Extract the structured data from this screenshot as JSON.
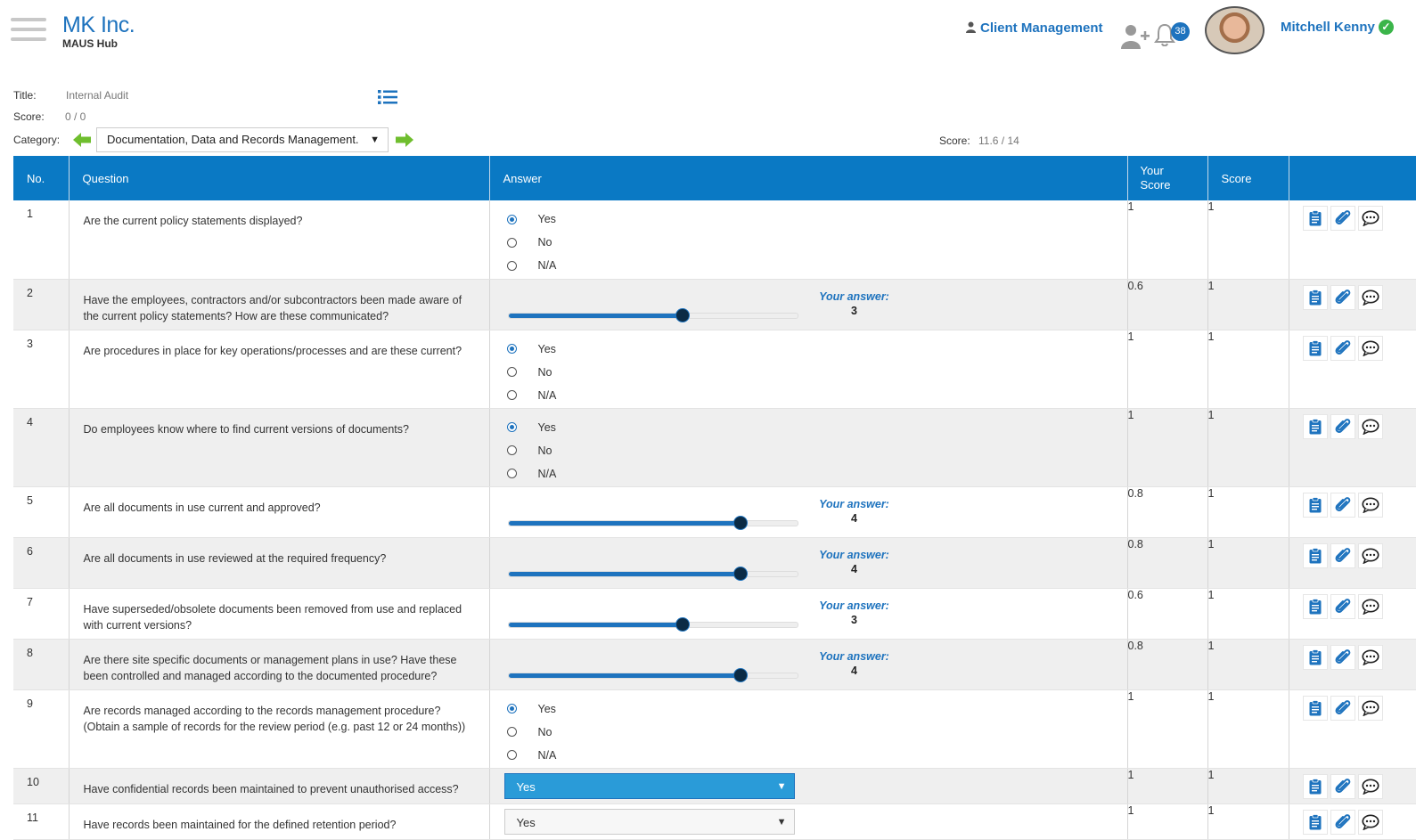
{
  "header": {
    "brand_name": "MK Inc.",
    "brand_sub": "MAUS Hub",
    "client_management": "Client Management",
    "notification_count": "38",
    "user_name": "Mitchell Kenny"
  },
  "audit": {
    "title_label": "Title:",
    "title_value": "Internal Audit",
    "score_label": "Score:",
    "score_value": "0 / 0",
    "category_label": "Category:",
    "category_value": "Documentation, Data and Records Management.",
    "category_score_label": "Score:",
    "category_score_value": "11.6 / 14"
  },
  "table": {
    "headers": {
      "no": "No.",
      "question": "Question",
      "answer": "Answer",
      "your_score": "Your Score",
      "score": "Score"
    },
    "radio_options": [
      "Yes",
      "No",
      "N/A"
    ],
    "your_answer_label": "Your answer:",
    "slider_max": 5,
    "rows": [
      {
        "no": "1",
        "question": "Are the current policy statements displayed?",
        "type": "radio",
        "selected": "Yes",
        "your_score": "1",
        "score": "1"
      },
      {
        "no": "2",
        "question": "Have the employees, contractors and/or subcontractors been made aware of the current policy statements? How are these communicated?",
        "type": "slider",
        "value": "3",
        "your_score": "0.6",
        "score": "1"
      },
      {
        "no": "3",
        "question": "Are procedures in place for key operations/processes and are these current?",
        "type": "radio",
        "selected": "Yes",
        "your_score": "1",
        "score": "1"
      },
      {
        "no": "4",
        "question": "Do employees know where to find current versions of documents?",
        "type": "radio",
        "selected": "Yes",
        "your_score": "1",
        "score": "1"
      },
      {
        "no": "5",
        "question": "Are all documents in use current and approved?",
        "type": "slider",
        "value": "4",
        "your_score": "0.8",
        "score": "1"
      },
      {
        "no": "6",
        "question": "Are all documents in use reviewed at the required frequency?",
        "type": "slider",
        "value": "4",
        "your_score": "0.8",
        "score": "1"
      },
      {
        "no": "7",
        "question": "Have superseded/obsolete documents been removed from use and replaced with current versions?",
        "type": "slider",
        "value": "3",
        "your_score": "0.6",
        "score": "1"
      },
      {
        "no": "8",
        "question": "Are there site specific documents or management plans in use? Have these been controlled and managed according to the documented procedure?",
        "type": "slider",
        "value": "4",
        "your_score": "0.8",
        "score": "1"
      },
      {
        "no": "9",
        "question": "Are records managed according to the records management procedure? (Obtain a sample of records for the review period (e.g. past 12 or 24 months))",
        "type": "radio",
        "selected": "Yes",
        "your_score": "1",
        "score": "1"
      },
      {
        "no": "10",
        "question": "Have confidential records been maintained to prevent unauthorised access?",
        "type": "dropdown",
        "value": "Yes",
        "your_score": "1",
        "score": "1"
      },
      {
        "no": "11",
        "question": "Have records been maintained for the defined retention period?",
        "type": "dropdown",
        "value": "Yes",
        "your_score": "1",
        "score": "1"
      }
    ]
  },
  "icons": [
    "menu-icon",
    "user-icon",
    "add-user-icon",
    "bell-icon",
    "check-icon",
    "list-icon",
    "arrow-left-icon",
    "arrow-right-icon",
    "clipboard-icon",
    "paperclip-icon",
    "comment-icon"
  ],
  "colors": {
    "primary": "#0a79c4",
    "accent_green": "#6fbe2e",
    "alt_row": "#efefef",
    "verified": "#3bb54a"
  }
}
